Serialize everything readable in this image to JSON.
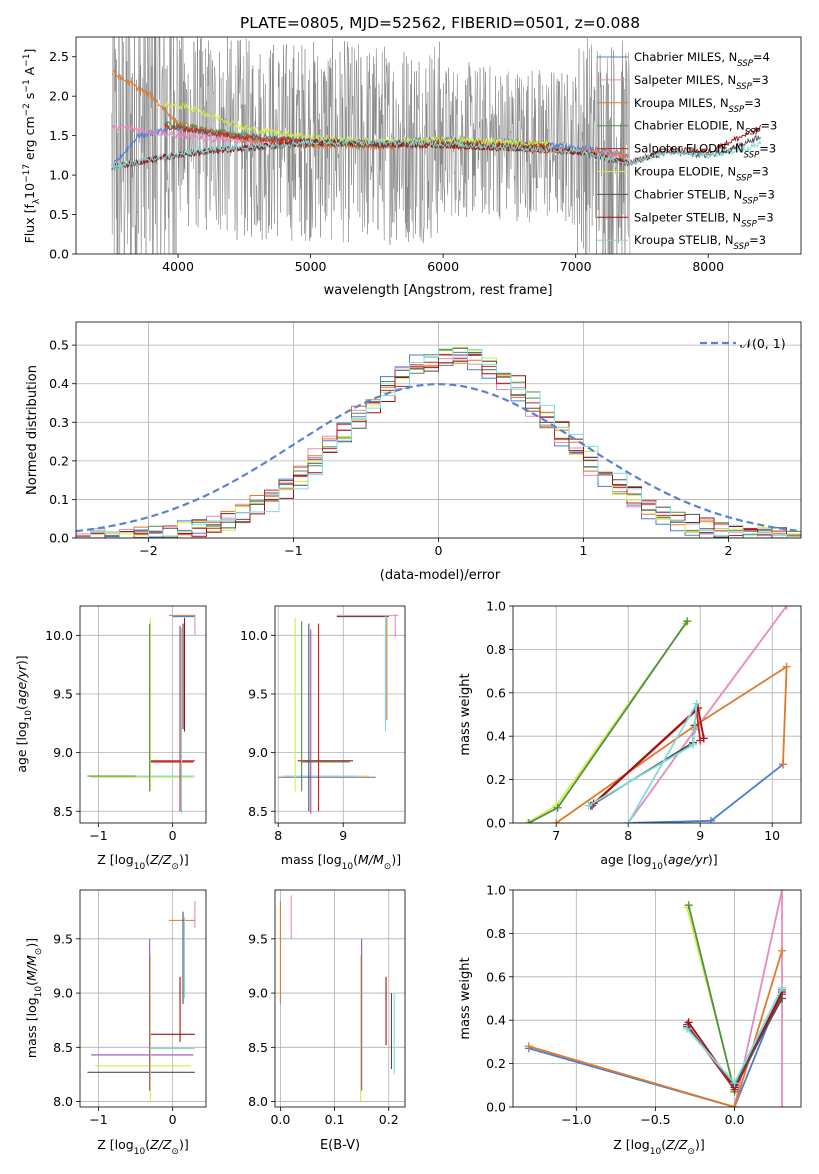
{
  "figure_title": "PLATE=0805, MJD=52562, FIBERID=0501, z=0.088",
  "colors": {
    "grid": "#b0b0b0",
    "spectrum_data": "#808080",
    "normal_curve": "#5a82d2",
    "series": [
      "#4a7fd6",
      "#e88ac0",
      "#e07a2a",
      "#4f8f4f",
      "#cc2222",
      "#d4ee44",
      "#505050",
      "#a01010",
      "#7fdcdc"
    ],
    "extra": [
      "#9b4fc0"
    ]
  },
  "chart_data": [
    {
      "id": "spectrum",
      "type": "line",
      "title": "",
      "xlabel": "wavelength [Angstrom, rest frame]",
      "ylabel": "Flux [f_λ 10^-17 erg cm^-2 s^-1 A^-1]",
      "xlim": [
        3230,
        8700
      ],
      "ylim": [
        0,
        2.75
      ],
      "xticks": [
        4000,
        5000,
        6000,
        7000,
        8000
      ],
      "yticks": [
        0.0,
        0.5,
        1.0,
        1.5,
        2.0,
        2.5
      ],
      "grid": false,
      "legend_position": "top-right",
      "data_wavelength_range": [
        3500,
        7410
      ],
      "series": [
        {
          "name": "Chabrier MILES, N_SSP=4",
          "x": [
            3500,
            3700,
            4000,
            4500,
            5000,
            5500,
            6000,
            6500,
            7000,
            7400
          ],
          "y": [
            1.1,
            1.5,
            1.6,
            1.45,
            1.45,
            1.4,
            1.45,
            1.42,
            1.35,
            1.25
          ]
        },
        {
          "name": "Salpeter MILES, N_SSP=3",
          "x": [
            3500,
            3600,
            3800,
            4000,
            4500,
            5000,
            5500,
            6000,
            6500,
            7000,
            7400
          ],
          "y": [
            1.6,
            1.6,
            1.55,
            1.5,
            1.42,
            1.4,
            1.38,
            1.4,
            1.35,
            1.3,
            1.25
          ]
        },
        {
          "name": "Kroupa MILES, N_SSP=3",
          "x": [
            3500,
            3600,
            3800,
            4000,
            4500,
            5000,
            5500,
            6000,
            6500,
            7000,
            7400
          ],
          "y": [
            2.3,
            2.2,
            2.0,
            1.65,
            1.45,
            1.38,
            1.36,
            1.38,
            1.34,
            1.3,
            1.25
          ]
        },
        {
          "name": "Chabrier ELODIE, N_SSP=3",
          "x": [
            3900,
            4500,
            5000,
            5500,
            6000,
            6500,
            6800
          ],
          "y": [
            1.65,
            1.5,
            1.42,
            1.4,
            1.42,
            1.38,
            1.38
          ]
        },
        {
          "name": "Salpeter ELODIE, N_SSP=3",
          "x": [
            3900,
            4500,
            5000,
            5500,
            6000,
            6500,
            6800
          ],
          "y": [
            1.62,
            1.48,
            1.42,
            1.38,
            1.42,
            1.38,
            1.38
          ]
        },
        {
          "name": "Kroupa ELODIE, N_SSP=3",
          "x": [
            3900,
            4100,
            4500,
            5000,
            5500,
            6000,
            6500,
            6800
          ],
          "y": [
            1.9,
            1.85,
            1.6,
            1.48,
            1.42,
            1.45,
            1.42,
            1.4
          ]
        },
        {
          "name": "Chabrier STELIB, N_SSP=3",
          "x": [
            3500,
            3800,
            4200,
            5000,
            6000,
            7000,
            7400,
            7700,
            8000,
            8200,
            8400
          ],
          "y": [
            1.1,
            1.2,
            1.3,
            1.4,
            1.38,
            1.3,
            1.15,
            1.3,
            1.25,
            1.35,
            1.5
          ]
        },
        {
          "name": "Salpeter STELIB, N_SSP=3",
          "x": [
            3500,
            3800,
            4200,
            5000,
            6000,
            7000,
            7400,
            7700,
            8000,
            8200,
            8400
          ],
          "y": [
            1.1,
            1.2,
            1.3,
            1.42,
            1.38,
            1.3,
            1.15,
            1.32,
            1.3,
            1.45,
            1.6
          ]
        },
        {
          "name": "Kroupa STELIB, N_SSP=3",
          "x": [
            3500,
            3800,
            4200,
            5000,
            6000,
            7000,
            7400,
            7700,
            8000,
            8200,
            8400
          ],
          "y": [
            1.1,
            1.2,
            1.32,
            1.42,
            1.4,
            1.3,
            1.15,
            1.3,
            1.25,
            1.3,
            1.4
          ]
        }
      ]
    },
    {
      "id": "residuals",
      "type": "line",
      "title": "",
      "xlabel": "(data-model)/error",
      "ylabel": "Normed distribution",
      "xlim": [
        -2.5,
        2.5
      ],
      "ylim": [
        0,
        0.56
      ],
      "xticks": [
        -2,
        -1,
        0,
        1,
        2
      ],
      "yticks": [
        0.0,
        0.1,
        0.2,
        0.3,
        0.4,
        0.5
      ],
      "grid": true,
      "legend_position": "top-right",
      "reference_curve": {
        "name": "𝒩(0, 1)",
        "mean": 0,
        "sigma": 1
      },
      "histogram_bin_width": 0.1,
      "histogram_center": 0.1,
      "histogram_sigma": 0.72,
      "histogram_peak": 0.47,
      "histogram_count": 9
    },
    {
      "id": "age-vs-metallicity",
      "type": "scatter",
      "title": "",
      "xlabel": "Z [log10(Z/Z☉)]",
      "ylabel": "age [log10(age/yr)]",
      "xlim": [
        -1.25,
        0.45
      ],
      "ylim": [
        8.4,
        10.25
      ],
      "xticks": [
        -1,
        0
      ],
      "yticks": [
        8.5,
        9.0,
        9.5,
        10.0
      ],
      "grid": true,
      "hlines": [
        {
          "y": 10.17,
          "x0": -0.05,
          "x1": 0.3,
          "c": 2
        },
        {
          "y": 10.16,
          "x0": -0.0,
          "x1": 0.3,
          "c": 0
        },
        {
          "y": 8.93,
          "x0": -0.3,
          "x1": 0.3,
          "c": 4
        },
        {
          "y": 8.92,
          "x0": -0.3,
          "x1": 0.28,
          "c": 7
        },
        {
          "y": 8.79,
          "x0": -1.1,
          "x1": 0.28,
          "c": 5
        },
        {
          "y": 8.8,
          "x0": -1.15,
          "x1": 0.25,
          "c": 3
        },
        {
          "y": 8.8,
          "x0": -0.5,
          "x1": 0.3,
          "c": 8
        }
      ],
      "vlines": [
        {
          "x": -0.3,
          "y0": 8.67,
          "y1": 10.15,
          "c": 5
        },
        {
          "x": -0.31,
          "y0": 8.67,
          "y1": 10.1,
          "c": 3
        },
        {
          "x": 0.1,
          "y0": 8.5,
          "y1": 10.08,
          "c": 4
        },
        {
          "x": 0.12,
          "y0": 8.48,
          "y1": 10.06,
          "c": 8
        },
        {
          "x": 0.14,
          "y0": 9.2,
          "y1": 10.1,
          "c": 6
        },
        {
          "x": 0.16,
          "y0": 9.18,
          "y1": 10.15,
          "c": 7
        },
        {
          "x": 0.3,
          "y0": 10.0,
          "y1": 10.18,
          "c": 1
        }
      ]
    },
    {
      "id": "age-vs-mass",
      "type": "scatter",
      "title": "",
      "xlabel": "mass [log10(M/M☉)]",
      "ylabel": "",
      "xlim": [
        7.95,
        9.95
      ],
      "ylim": [
        8.4,
        10.25
      ],
      "xticks": [
        8,
        9
      ],
      "yticks": [
        8.5,
        9.0,
        9.5,
        10.0
      ],
      "grid": true,
      "hlines": [
        {
          "y": 10.17,
          "x0": 8.9,
          "x1": 9.85,
          "c": 1
        },
        {
          "y": 10.16,
          "x0": 8.9,
          "x1": 9.7,
          "c": 6
        },
        {
          "y": 8.93,
          "x0": 8.3,
          "x1": 9.15,
          "c": 7
        },
        {
          "y": 8.92,
          "x0": 8.35,
          "x1": 9.1,
          "c": 3
        },
        {
          "y": 8.79,
          "x0": 8.0,
          "x1": 9.5,
          "c": 9
        },
        {
          "y": 8.8,
          "x0": 8.05,
          "x1": 9.4,
          "c": 5
        },
        {
          "y": 8.8,
          "x0": 8.1,
          "x1": 9.2,
          "c": 8
        }
      ],
      "vlines": [
        {
          "x": 8.26,
          "y0": 8.67,
          "y1": 10.15,
          "c": 5
        },
        {
          "x": 8.36,
          "y0": 8.67,
          "y1": 10.12,
          "c": 3
        },
        {
          "x": 8.47,
          "y0": 8.5,
          "y1": 10.1,
          "c": 6
        },
        {
          "x": 8.5,
          "y0": 8.48,
          "y1": 10.05,
          "c": 9
        },
        {
          "x": 8.62,
          "y0": 8.5,
          "y1": 10.1,
          "c": 4
        },
        {
          "x": 9.65,
          "y0": 9.18,
          "y1": 10.17,
          "c": 8
        },
        {
          "x": 9.67,
          "y0": 9.28,
          "y1": 10.15,
          "c": 2
        },
        {
          "x": 9.8,
          "y0": 9.99,
          "y1": 10.18,
          "c": 1
        }
      ]
    },
    {
      "id": "weight-vs-age",
      "type": "line",
      "title": "",
      "xlabel": "age [log10(age/yr)]",
      "ylabel": "mass weight",
      "xlim": [
        6.4,
        10.4
      ],
      "ylim": [
        0,
        1
      ],
      "xticks": [
        7,
        8,
        9,
        10
      ],
      "yticks": [
        0.0,
        0.2,
        0.4,
        0.6,
        0.8,
        1.0
      ],
      "grid": true,
      "series": [
        {
          "c": 0,
          "x": [
            8.0,
            9.15,
            10.15
          ],
          "y": [
            0.0,
            0.01,
            0.27
          ]
        },
        {
          "c": 1,
          "x": [
            8.0,
            8.93,
            10.2
          ],
          "y": [
            0.0,
            0.43,
            1.0
          ]
        },
        {
          "c": 2,
          "x": [
            7.0,
            8.93,
            10.2,
            10.15
          ],
          "y": [
            0.0,
            0.45,
            0.72,
            0.27
          ]
        },
        {
          "c": 5,
          "x": [
            6.6,
            7.0,
            8.8
          ],
          "y": [
            0.0,
            0.08,
            0.92
          ]
        },
        {
          "c": 3,
          "x": [
            6.62,
            7.02,
            8.82
          ],
          "y": [
            0.0,
            0.07,
            0.93
          ]
        },
        {
          "c": 4,
          "x": [
            7.5,
            8.95,
            9.0
          ],
          "y": [
            0.08,
            0.52,
            0.38
          ]
        },
        {
          "c": 7,
          "x": [
            7.52,
            8.97,
            9.05
          ],
          "y": [
            0.09,
            0.53,
            0.39
          ]
        },
        {
          "c": 6,
          "x": [
            7.48,
            8.9,
            8.92
          ],
          "y": [
            0.08,
            0.37,
            0.45
          ]
        },
        {
          "c": 8,
          "x": [
            7.45,
            8.9,
            8.95,
            8.0
          ],
          "y": [
            0.08,
            0.36,
            0.55,
            0.0
          ]
        }
      ]
    },
    {
      "id": "mass-vs-metallicity",
      "type": "scatter",
      "title": "",
      "xlabel": "Z [log10(Z/Z☉)]",
      "ylabel": "mass [log10(M/M☉)]",
      "xlim": [
        -1.25,
        0.45
      ],
      "ylim": [
        7.95,
        9.95
      ],
      "xticks": [
        -1,
        0
      ],
      "yticks": [
        8.0,
        8.5,
        9.0,
        9.5
      ],
      "grid": true,
      "hlines": [
        {
          "y": 9.67,
          "x0": -0.05,
          "x1": 0.3,
          "c": 2
        },
        {
          "y": 8.62,
          "x0": -0.3,
          "x1": 0.3,
          "c": 7
        },
        {
          "y": 8.49,
          "x0": -0.3,
          "x1": 0.3,
          "c": 8
        },
        {
          "y": 8.43,
          "x0": -1.1,
          "x1": 0.28,
          "c": 9
        },
        {
          "y": 8.33,
          "x0": -1.05,
          "x1": 0.25,
          "c": 5
        },
        {
          "y": 8.27,
          "x0": -1.15,
          "x1": 0.3,
          "c": 6
        }
      ],
      "vlines": [
        {
          "x": -0.3,
          "y0": 8.0,
          "y1": 9.35,
          "c": 5
        },
        {
          "x": -0.31,
          "y0": 8.1,
          "y1": 9.5,
          "c": 9
        },
        {
          "x": 0.1,
          "y0": 8.55,
          "y1": 9.15,
          "c": 7
        },
        {
          "x": 0.14,
          "y0": 8.9,
          "y1": 9.75,
          "c": 6
        },
        {
          "x": 0.16,
          "y0": 8.95,
          "y1": 9.7,
          "c": 8
        },
        {
          "x": 0.3,
          "y0": 9.6,
          "y1": 9.85,
          "c": 1
        }
      ]
    },
    {
      "id": "mass-vs-extinction",
      "type": "scatter",
      "title": "",
      "xlabel": "E(B-V)",
      "ylabel": "",
      "xlim": [
        -0.01,
        0.23
      ],
      "ylim": [
        7.95,
        9.95
      ],
      "xticks": [
        0.0,
        0.1,
        0.2
      ],
      "yticks": [
        8.0,
        8.5,
        9.0,
        9.5
      ],
      "grid": true,
      "hlines": [],
      "vlines": [
        {
          "x": 0.0,
          "y0": 8.9,
          "y1": 9.85,
          "c": 2
        },
        {
          "x": 0.02,
          "y0": 9.5,
          "y1": 9.9,
          "c": 1
        },
        {
          "x": 0.148,
          "y0": 8.0,
          "y1": 9.35,
          "c": 5
        },
        {
          "x": 0.15,
          "y0": 8.1,
          "y1": 9.5,
          "c": 9
        },
        {
          "x": 0.195,
          "y0": 8.52,
          "y1": 9.15,
          "c": 7
        },
        {
          "x": 0.205,
          "y0": 8.3,
          "y1": 9.0,
          "c": 6
        },
        {
          "x": 0.21,
          "y0": 8.25,
          "y1": 9.0,
          "c": 8
        }
      ]
    },
    {
      "id": "weight-vs-metallicity",
      "type": "line",
      "title": "",
      "xlabel": "Z [log10(Z/Z☉)]",
      "ylabel": "mass weight",
      "xlim": [
        -1.4,
        0.42
      ],
      "ylim": [
        0,
        1
      ],
      "xticks": [
        -1.0,
        -0.5,
        0.0
      ],
      "yticks": [
        0.0,
        0.2,
        0.4,
        0.6,
        0.8,
        1.0
      ],
      "grid": true,
      "series": [
        {
          "c": 0,
          "x": [
            -1.3,
            0.0,
            0.3
          ],
          "y": [
            0.27,
            0.0,
            0.54
          ]
        },
        {
          "c": 1,
          "x": [
            0.0,
            0.3,
            0.3
          ],
          "y": [
            0.0,
            1.0,
            0.0
          ]
        },
        {
          "c": 2,
          "x": [
            -1.3,
            0.0,
            0.3
          ],
          "y": [
            0.28,
            0.0,
            0.72
          ]
        },
        {
          "c": 5,
          "x": [
            -0.3,
            0.0
          ],
          "y": [
            0.92,
            0.08
          ]
        },
        {
          "c": 3,
          "x": [
            -0.29,
            0.0
          ],
          "y": [
            0.93,
            0.07
          ]
        },
        {
          "c": 4,
          "x": [
            -0.3,
            0.0,
            0.3
          ],
          "y": [
            0.38,
            0.08,
            0.52
          ]
        },
        {
          "c": 7,
          "x": [
            -0.29,
            0.0,
            0.3
          ],
          "y": [
            0.39,
            0.09,
            0.53
          ]
        },
        {
          "c": 6,
          "x": [
            -0.3,
            0.0,
            0.3
          ],
          "y": [
            0.37,
            0.1,
            0.5
          ]
        },
        {
          "c": 8,
          "x": [
            -0.3,
            0.0,
            0.3
          ],
          "y": [
            0.36,
            0.11,
            0.55
          ]
        }
      ]
    }
  ]
}
